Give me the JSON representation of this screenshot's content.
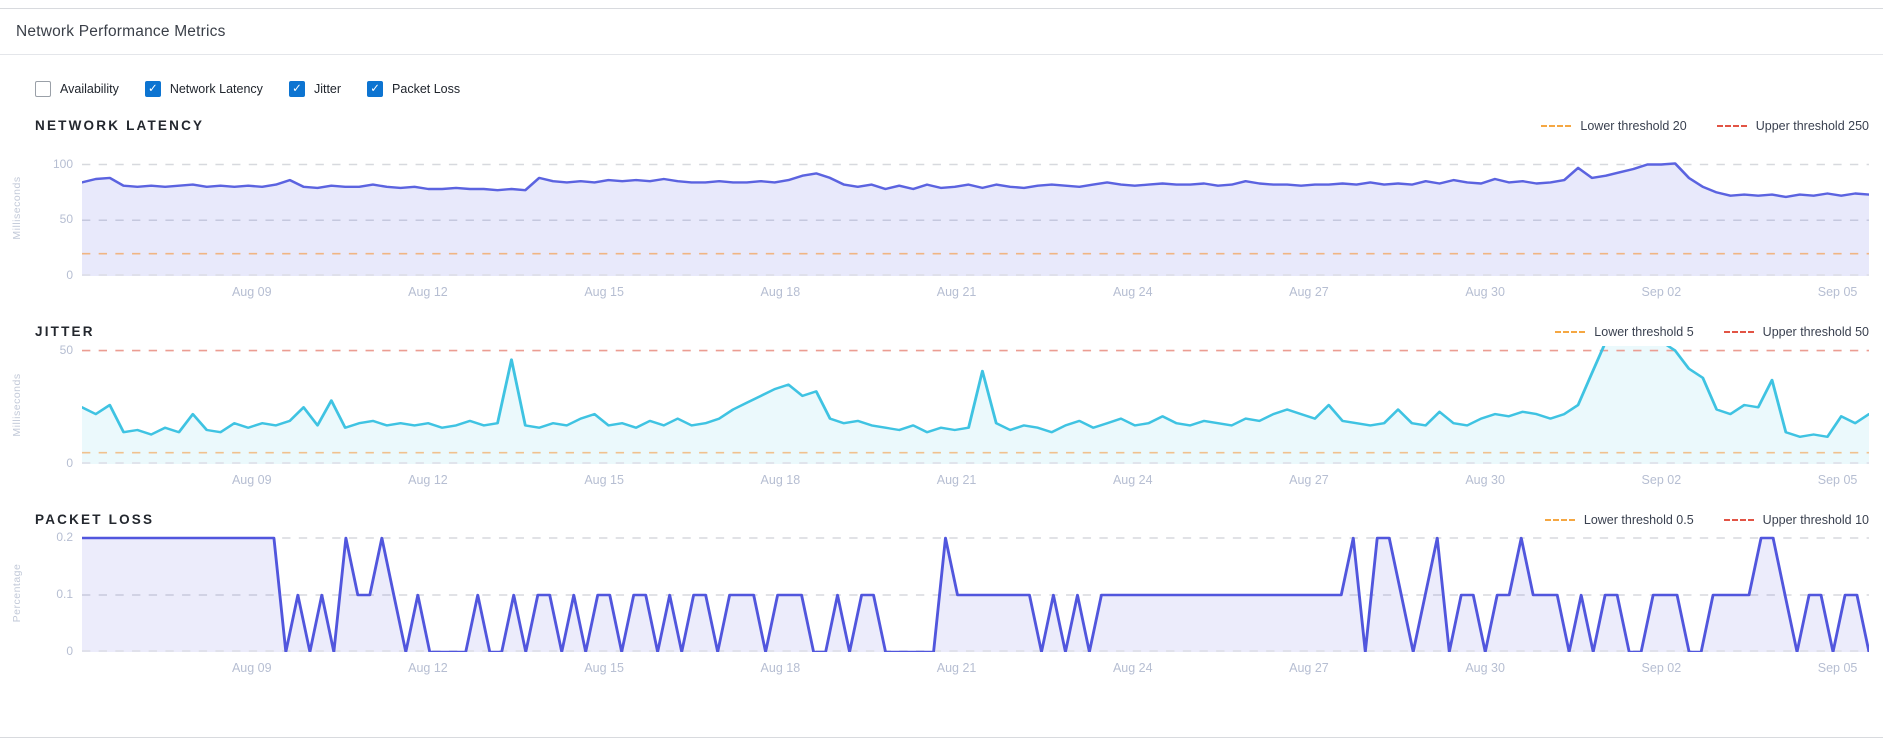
{
  "header": {
    "title": "Network Performance Metrics"
  },
  "filters": [
    {
      "label": "Availability",
      "checked": false
    },
    {
      "label": "Network Latency",
      "checked": true
    },
    {
      "label": "Jitter",
      "checked": true
    },
    {
      "label": "Packet Loss",
      "checked": true
    }
  ],
  "x_axis": {
    "labels": [
      "Aug 09",
      "Aug 12",
      "Aug 15",
      "Aug 18",
      "Aug 21",
      "Aug 24",
      "Aug 27",
      "Aug 30",
      "Sep 02",
      "Sep 05"
    ],
    "first_frac": 0.095,
    "step_frac": 0.0986
  },
  "chart_data": [
    {
      "type": "area",
      "title": "NETWORK LATENCY",
      "ylabel": "Milliseconds",
      "ymax": 122,
      "yticks": [
        {
          "label": "100",
          "value": 100
        },
        {
          "label": "50",
          "value": 50
        },
        {
          "label": "0",
          "value": 0
        }
      ],
      "grid_values": [
        100,
        50
      ],
      "lower_threshold": 20,
      "upper_threshold": 250,
      "lower_line_color": "#f0b583",
      "upper_line_color": "#eb9d92",
      "legend": [
        {
          "label": "Lower threshold 20",
          "color": "#f5a742"
        },
        {
          "label": "Upper threshold 250",
          "color": "#e25445"
        }
      ],
      "line_color": "#5b63e0",
      "fill_color": "rgba(91,99,224,0.14)",
      "values": [
        84,
        87,
        88,
        81,
        80,
        81,
        80,
        81,
        82,
        80,
        81,
        80,
        81,
        80,
        82,
        86,
        80,
        79,
        81,
        80,
        80,
        82,
        80,
        79,
        80,
        78,
        78,
        79,
        78,
        78,
        77,
        78,
        77,
        88,
        85,
        84,
        85,
        84,
        86,
        85,
        86,
        85,
        87,
        85,
        84,
        84,
        85,
        84,
        84,
        85,
        84,
        86,
        90,
        92,
        88,
        82,
        80,
        82,
        78,
        81,
        78,
        82,
        79,
        80,
        82,
        79,
        82,
        80,
        79,
        81,
        82,
        81,
        80,
        82,
        84,
        82,
        81,
        82,
        83,
        82,
        82,
        83,
        81,
        82,
        85,
        83,
        82,
        82,
        81,
        82,
        82,
        83,
        82,
        84,
        82,
        83,
        82,
        85,
        83,
        86,
        84,
        83,
        87,
        84,
        85,
        83,
        84,
        86,
        97,
        88,
        90,
        93,
        96,
        100,
        100,
        101,
        88,
        80,
        75,
        72,
        73,
        72,
        73,
        71,
        73,
        72,
        74,
        72,
        74,
        73
      ]
    },
    {
      "type": "area",
      "title": "JITTER",
      "ylabel": "Milliseconds",
      "ymax": 52,
      "yticks": [
        {
          "label": "50",
          "value": 50
        },
        {
          "label": "0",
          "value": 0
        }
      ],
      "grid_values": [],
      "lower_threshold": 5,
      "upper_threshold": 50,
      "lower_line_color": "#f0c18e",
      "upper_line_color": "#eb9d92",
      "legend": [
        {
          "label": "Lower threshold 5",
          "color": "#f5a742"
        },
        {
          "label": "Upper threshold 50",
          "color": "#e25445"
        }
      ],
      "line_color": "#3fc3e2",
      "fill_color": "rgba(63,195,226,0.10)",
      "values": [
        25,
        22,
        26,
        14,
        15,
        13,
        16,
        14,
        22,
        15,
        14,
        18,
        16,
        18,
        17,
        19,
        25,
        17,
        28,
        16,
        18,
        19,
        17,
        18,
        17,
        18,
        16,
        17,
        19,
        17,
        18,
        46,
        17,
        16,
        18,
        17,
        20,
        22,
        17,
        18,
        16,
        19,
        17,
        20,
        17,
        18,
        20,
        24,
        27,
        30,
        33,
        35,
        30,
        32,
        20,
        18,
        19,
        17,
        16,
        15,
        17,
        14,
        16,
        15,
        16,
        41,
        18,
        15,
        17,
        16,
        14,
        17,
        19,
        16,
        18,
        20,
        17,
        18,
        21,
        18,
        17,
        19,
        18,
        17,
        20,
        19,
        22,
        24,
        22,
        20,
        26,
        19,
        18,
        17,
        18,
        24,
        18,
        17,
        23,
        18,
        17,
        20,
        22,
        21,
        23,
        22,
        20,
        22,
        26,
        40,
        54,
        54,
        54,
        54,
        54,
        50,
        42,
        38,
        24,
        22,
        26,
        25,
        37,
        14,
        12,
        13,
        12,
        21,
        18,
        22
      ]
    },
    {
      "type": "area",
      "title": "PACKET LOSS",
      "ylabel": "Percentage",
      "ymax": 0.207,
      "yticks": [
        {
          "label": "0.2",
          "value": 0.2
        },
        {
          "label": "0.1",
          "value": 0.1
        },
        {
          "label": "0",
          "value": 0
        }
      ],
      "grid_values": [
        0.2,
        0.1
      ],
      "lower_threshold": 0.5,
      "upper_threshold": 10,
      "lower_line_color": "#f0b583",
      "upper_line_color": "#eb9d92",
      "legend": [
        {
          "label": "Lower threshold 0.5",
          "color": "#f5a742"
        },
        {
          "label": "Upper threshold 10",
          "color": "#e25445"
        }
      ],
      "line_color": "#5156dd",
      "fill_color": "rgba(81,86,221,0.11)",
      "values": [
        0.2,
        0.2,
        0.2,
        0.2,
        0.2,
        0.2,
        0.2,
        0.2,
        0.2,
        0.2,
        0.2,
        0.2,
        0.2,
        0.2,
        0.2,
        0.2,
        0.2,
        0,
        0.1,
        0,
        0.1,
        0,
        0.2,
        0.1,
        0.1,
        0.2,
        0.1,
        0,
        0.1,
        0,
        0,
        0,
        0,
        0.1,
        0,
        0,
        0.1,
        0,
        0.1,
        0.1,
        0,
        0.1,
        0,
        0.1,
        0.1,
        0,
        0.1,
        0.1,
        0,
        0.1,
        0,
        0.1,
        0.1,
        0,
        0.1,
        0.1,
        0.1,
        0,
        0.1,
        0.1,
        0.1,
        0,
        0,
        0.1,
        0,
        0.1,
        0.1,
        0,
        0,
        0,
        0,
        0,
        0.2,
        0.1,
        0.1,
        0.1,
        0.1,
        0.1,
        0.1,
        0.1,
        0,
        0.1,
        0,
        0.1,
        0,
        0.1,
        0.1,
        0.1,
        0.1,
        0.1,
        0.1,
        0.1,
        0.1,
        0.1,
        0.1,
        0.1,
        0.1,
        0.1,
        0.1,
        0.1,
        0.1,
        0.1,
        0.1,
        0.1,
        0.1,
        0.1,
        0.2,
        0,
        0.2,
        0.2,
        0.1,
        0,
        0.1,
        0.2,
        0,
        0.1,
        0.1,
        0,
        0.1,
        0.1,
        0.2,
        0.1,
        0.1,
        0.1,
        0,
        0.1,
        0,
        0.1,
        0.1,
        0,
        0,
        0.1,
        0.1,
        0.1,
        0,
        0,
        0.1,
        0.1,
        0.1,
        0.1,
        0.2,
        0.2,
        0.1,
        0,
        0.1,
        0.1,
        0,
        0.1,
        0.1,
        0
      ]
    }
  ]
}
